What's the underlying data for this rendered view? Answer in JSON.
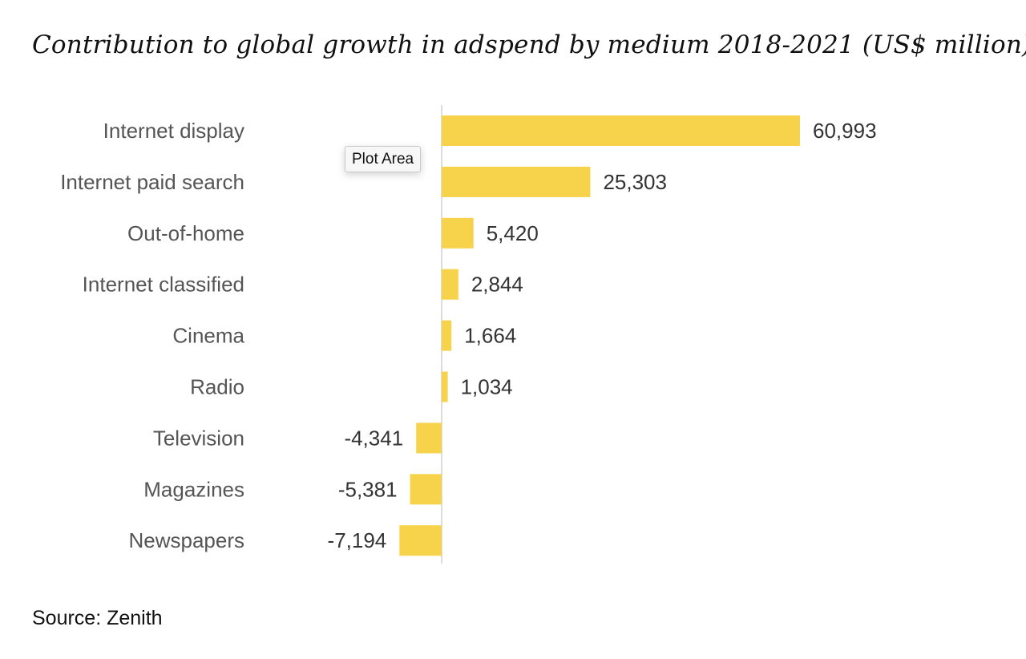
{
  "chart_data": {
    "type": "bar",
    "orientation": "horizontal",
    "title": "Contribution to global growth in adspend by medium 2018-2021 (US$ million)",
    "categories": [
      "Internet display",
      "Internet paid search",
      "Out-of-home",
      "Internet classified",
      "Cinema",
      "Radio",
      "Television",
      "Magazines",
      "Newspapers"
    ],
    "values": [
      60993,
      25303,
      5420,
      2844,
      1664,
      1034,
      -4341,
      -5381,
      -7194
    ],
    "value_labels": [
      "60,993",
      "25,303",
      "5,420",
      "2,844",
      "1,664",
      "1,034",
      "-4,341",
      "-5,381",
      "-7,194"
    ],
    "xlim": [
      -7500,
      61000
    ],
    "xlabel": "",
    "ylabel": "",
    "grid": false,
    "bar_color": "#F7D34B",
    "axis_color": "#d0d0d0",
    "source": "Source: Zenith"
  },
  "tooltip": {
    "text": "Plot Area"
  }
}
